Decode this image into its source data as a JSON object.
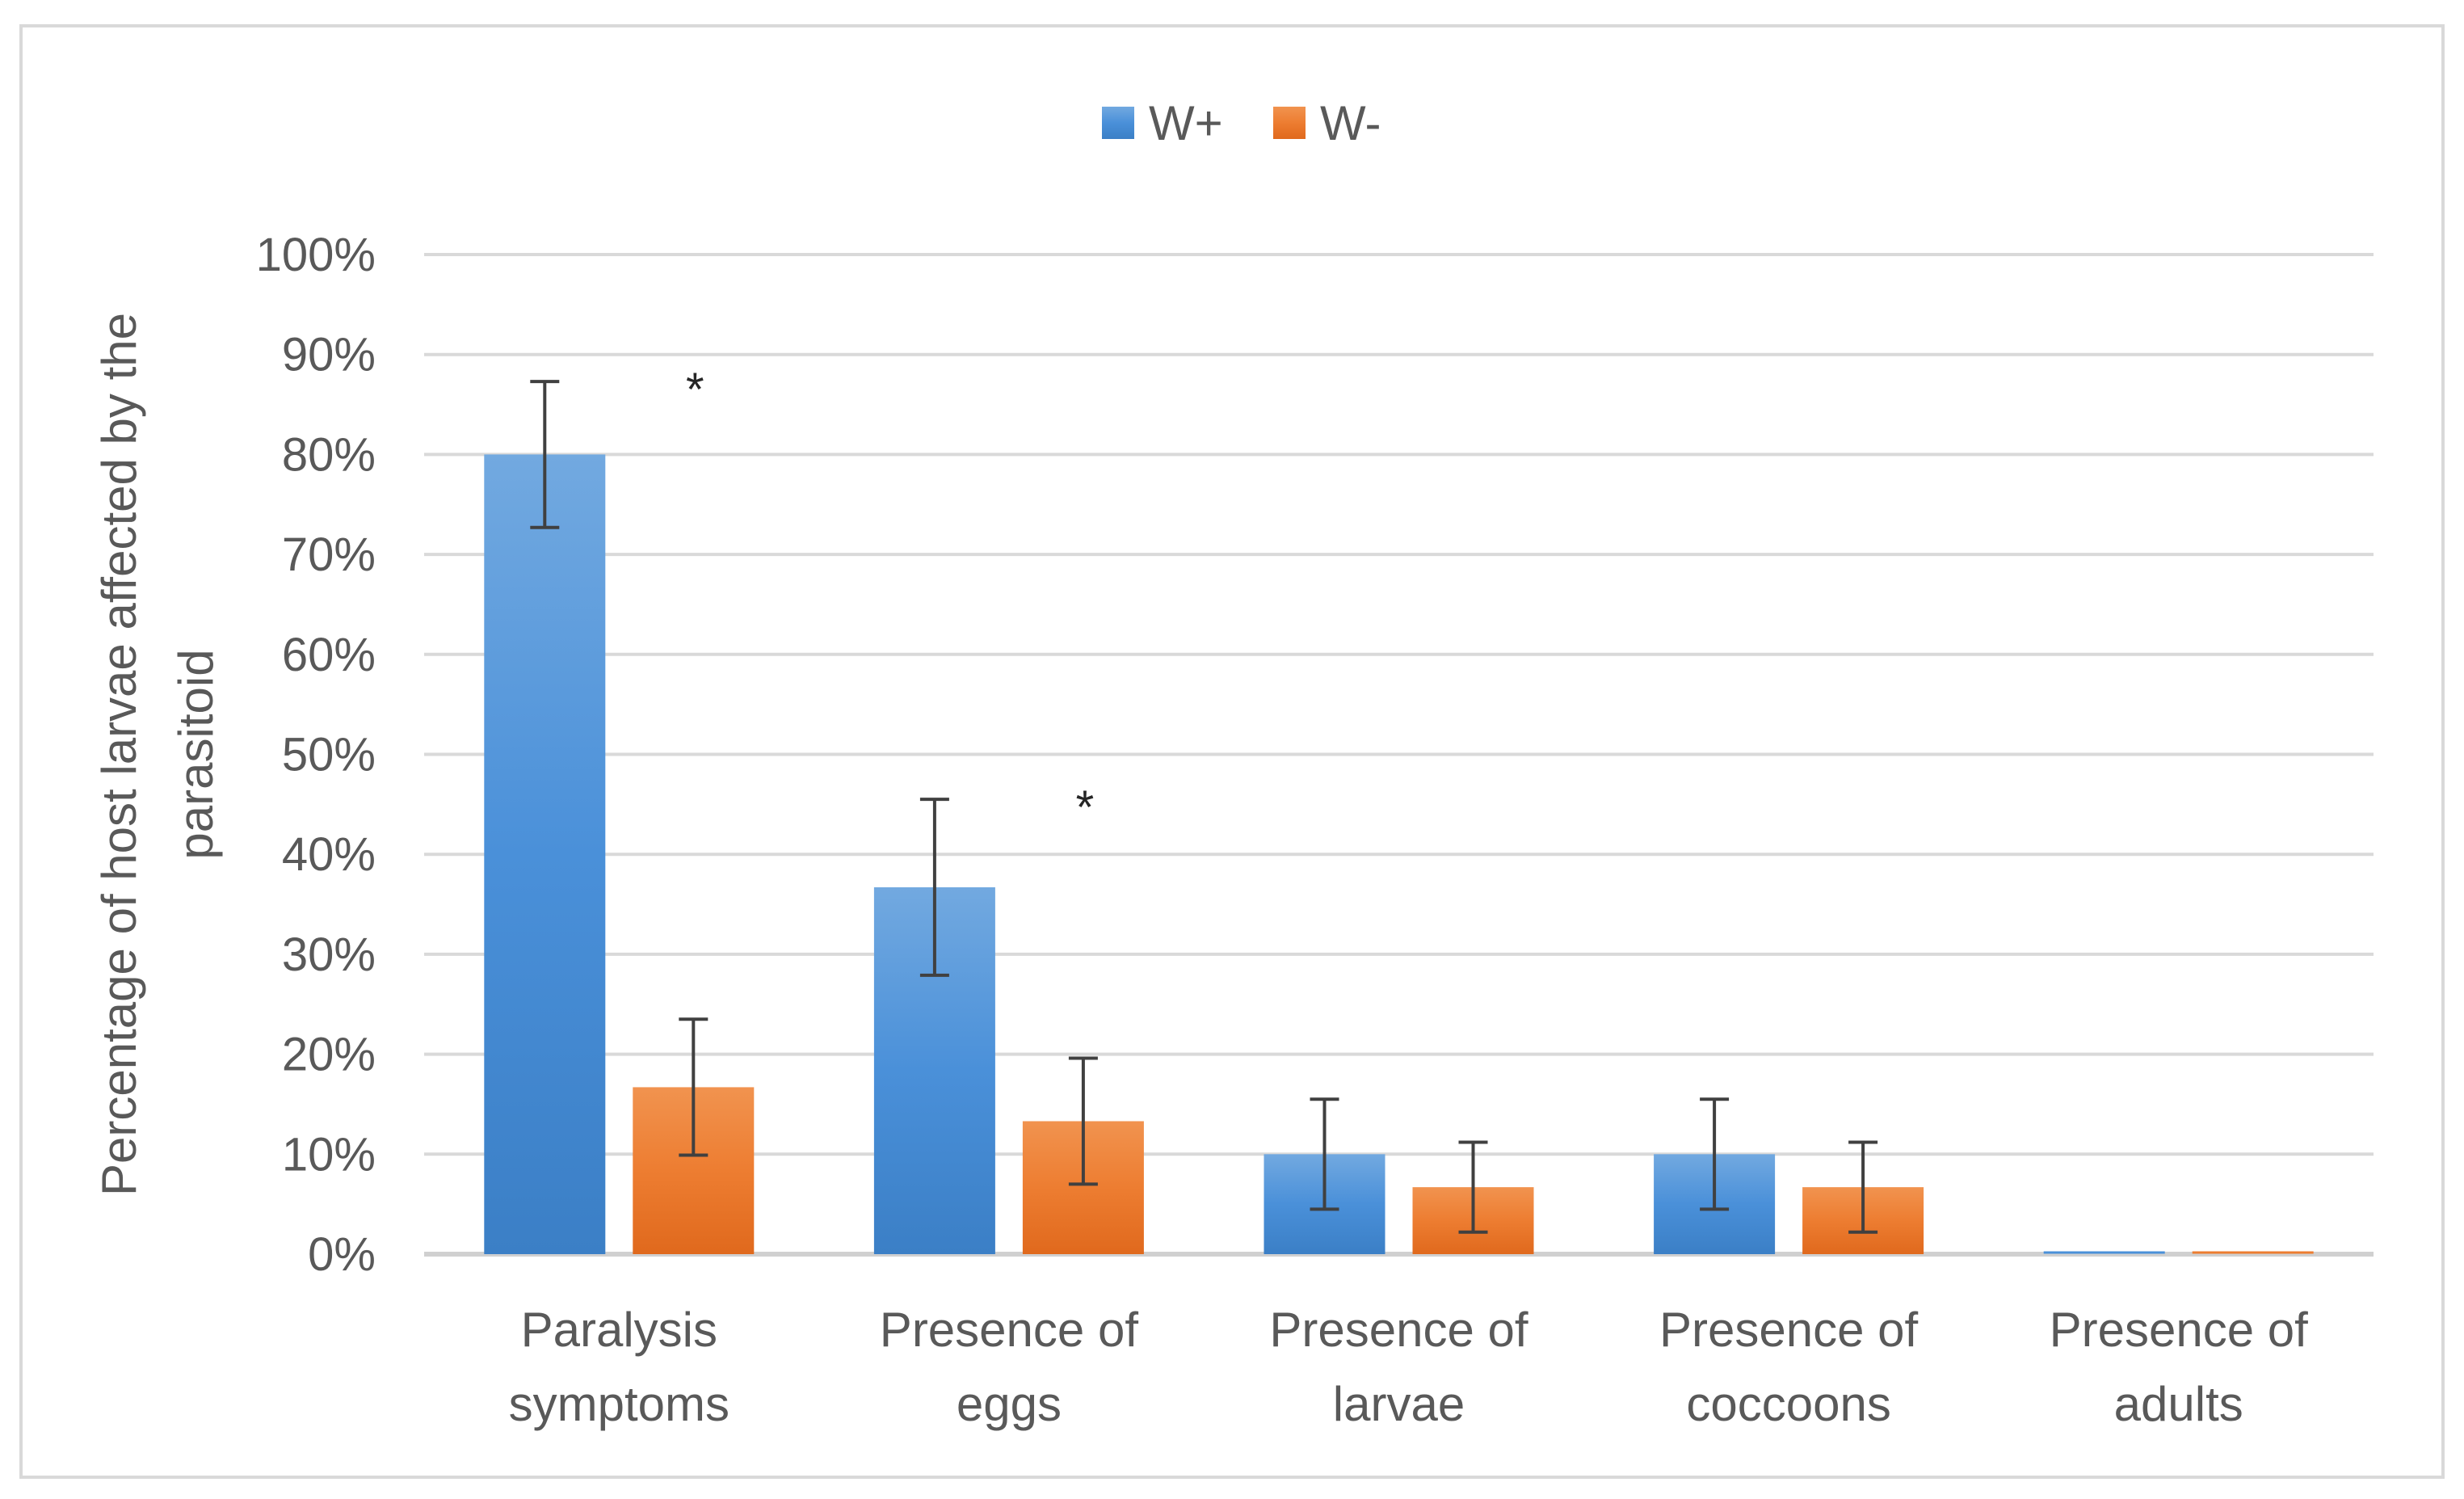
{
  "chart_data": {
    "type": "bar",
    "title": "",
    "xlabel": "",
    "ylabel_lines": [
      "Percentage of host larvae affected by the",
      "parasitoid"
    ],
    "ylim": [
      0,
      100
    ],
    "yticks": [
      0,
      10,
      20,
      30,
      40,
      50,
      60,
      70,
      80,
      90,
      100
    ],
    "ytick_suffix": "%",
    "grid": true,
    "legend_position": "top-center",
    "categories": [
      [
        "Paralysis",
        "symptoms"
      ],
      [
        "Presence of",
        "eggs"
      ],
      [
        "Presence of",
        "larvae"
      ],
      [
        "Presence of",
        "coccoons"
      ],
      [
        "Presence of",
        "adults"
      ]
    ],
    "series": [
      {
        "name": "W+",
        "color": "#4a90d9",
        "color_light": "#72a9e0",
        "color_dark": "#3b7fc6",
        "values": [
          80,
          36.7,
          10,
          10,
          0
        ],
        "errors": [
          7.3,
          8.8,
          5.5,
          5.5,
          0
        ]
      },
      {
        "name": "W-",
        "color": "#ed7d31",
        "color_light": "#f1934f",
        "color_dark": "#e0691d",
        "values": [
          16.7,
          13.3,
          6.7,
          6.7,
          0
        ],
        "errors": [
          6.8,
          6.3,
          4.5,
          4.5,
          0
        ]
      }
    ],
    "annotations": [
      {
        "text": "*",
        "category_index": 0
      },
      {
        "text": "*",
        "category_index": 1
      }
    ]
  }
}
